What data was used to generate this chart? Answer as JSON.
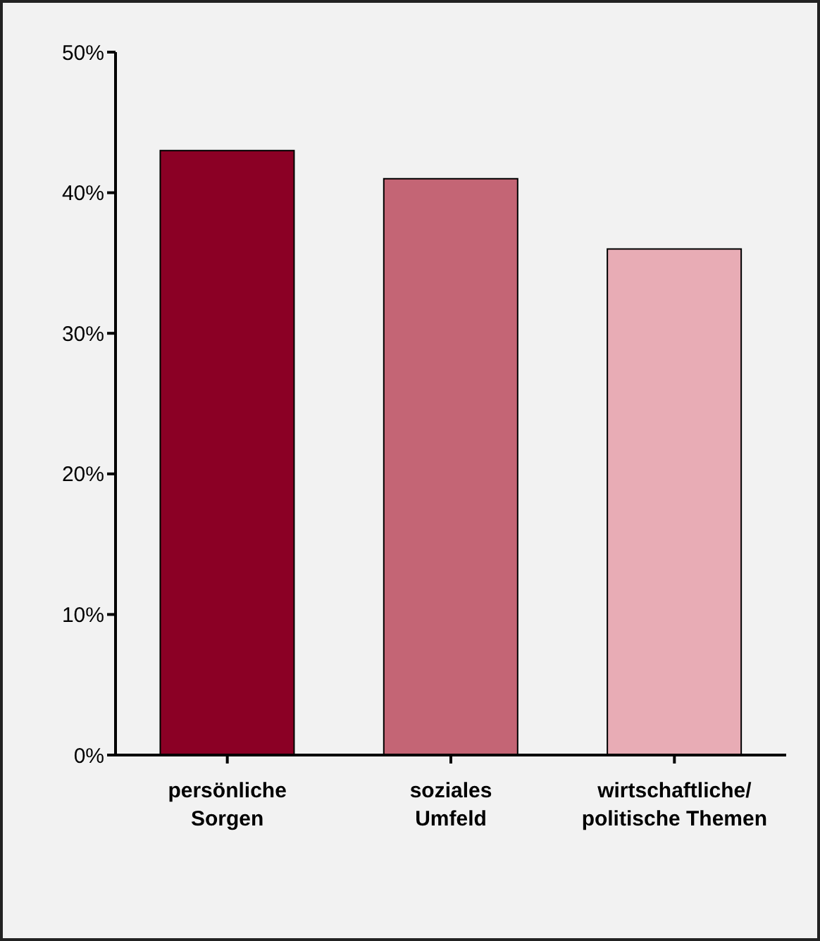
{
  "chart_data": {
    "type": "bar",
    "categories": [
      "persönliche\nSorgen",
      "soziales\nUmfeld",
      "wirtschaftliche/\npolitische Themen"
    ],
    "values": [
      43,
      41,
      36
    ],
    "colors": [
      "#8b0025",
      "#c46575",
      "#e8acb5"
    ],
    "ylim": [
      0,
      50
    ],
    "yticks": [
      {
        "value": 0,
        "label": "0%"
      },
      {
        "value": 10,
        "label": "10%"
      },
      {
        "value": 20,
        "label": "20%"
      },
      {
        "value": 30,
        "label": "30%"
      },
      {
        "value": 40,
        "label": "40%"
      },
      {
        "value": 50,
        "label": "50%"
      }
    ],
    "grid": false,
    "legend": false
  }
}
